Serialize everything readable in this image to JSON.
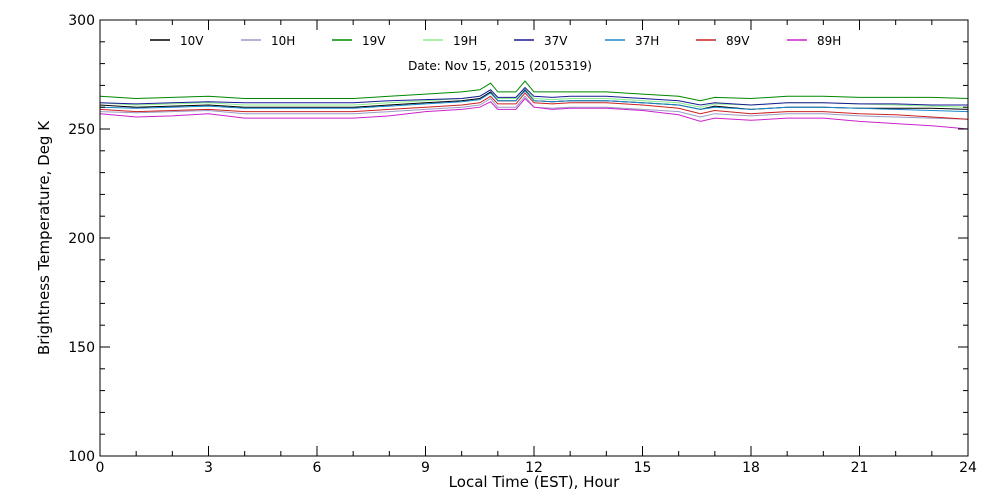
{
  "chart_data": {
    "type": "line",
    "xlabel": "Local Time (EST), Hour",
    "ylabel": "Brightness Temperature, Deg K",
    "annotation": "Date: Nov 15, 2015 (2015319)",
    "xlim": [
      0,
      24
    ],
    "ylim": [
      100,
      300
    ],
    "xticks": [
      "0",
      "3",
      "6",
      "9",
      "12",
      "15",
      "18",
      "21",
      "24"
    ],
    "yticks": [
      "100",
      "150",
      "200",
      "250",
      "300"
    ],
    "grid": false,
    "legend_position": "top",
    "x": [
      0,
      1,
      2,
      3,
      4,
      5,
      6,
      7,
      8,
      9,
      10,
      10.5,
      10.8,
      11,
      11.5,
      11.75,
      12,
      12.5,
      13,
      14,
      15,
      16,
      16.6,
      17,
      18,
      19,
      20,
      21,
      22,
      23,
      24
    ],
    "series": [
      {
        "name": "10V",
        "color": "#000000",
        "values": [
          261,
          260,
          260.5,
          261,
          260,
          260,
          260,
          260,
          261,
          262,
          263,
          264,
          267,
          263,
          263,
          268,
          263,
          262.5,
          263,
          263,
          262,
          261,
          259,
          260.5,
          259,
          260,
          260,
          259.5,
          259.5,
          259.5,
          259
        ]
      },
      {
        "name": "10H",
        "color": "#9a9ac8",
        "values": [
          258,
          257.5,
          258,
          258.5,
          257,
          257,
          257,
          257,
          258,
          259,
          260,
          261,
          264,
          260,
          260,
          265,
          260,
          259.5,
          260,
          260,
          259,
          258,
          255.5,
          257,
          256,
          257,
          257,
          256,
          255.5,
          255,
          254.5
        ]
      },
      {
        "name": "19V",
        "color": "#008800",
        "values": [
          265,
          264,
          264.5,
          265,
          264,
          264,
          264,
          264,
          265,
          266,
          267,
          268,
          271,
          267,
          267,
          272,
          267,
          267,
          267,
          267,
          266,
          265,
          263,
          264.5,
          264,
          265,
          265,
          264.5,
          264.5,
          264.5,
          264
        ]
      },
      {
        "name": "19H",
        "color": "#88ee88",
        "values": [
          262,
          261,
          261.5,
          262,
          261,
          261,
          261,
          261,
          262,
          263,
          264,
          265,
          268,
          264,
          264,
          269,
          264,
          263.5,
          264,
          264,
          263,
          262,
          260,
          261.5,
          261,
          262,
          262,
          261.5,
          261,
          260.5,
          260
        ]
      },
      {
        "name": "37V",
        "color": "#1a1a99",
        "values": [
          262,
          261.5,
          262,
          262.5,
          262,
          262,
          262,
          262,
          263,
          263.5,
          264,
          265,
          268,
          264.5,
          264.5,
          269,
          265,
          264.5,
          265,
          265,
          264,
          263,
          261,
          262,
          261,
          262,
          262,
          261.5,
          261.5,
          261,
          261
        ]
      },
      {
        "name": "37H",
        "color": "#1a88cc",
        "values": [
          260,
          259.5,
          260,
          260.5,
          259.5,
          259.5,
          259.5,
          259.5,
          260.5,
          261.5,
          262.5,
          263.5,
          266.5,
          263,
          263,
          267.5,
          263,
          262.5,
          263,
          263,
          262,
          261,
          259,
          260,
          259,
          260,
          260,
          259.5,
          259,
          258.5,
          258
        ]
      },
      {
        "name": "89V",
        "color": "#cc2222",
        "values": [
          259,
          258,
          258.5,
          259,
          258,
          258,
          258,
          258,
          259,
          260,
          261,
          262,
          265,
          261.5,
          261.5,
          266.5,
          262,
          261.5,
          262,
          262,
          261,
          259.5,
          257,
          258.5,
          257,
          258,
          258,
          257,
          256.5,
          255.5,
          254.5
        ]
      },
      {
        "name": "89H",
        "color": "#cc22cc",
        "values": [
          257,
          255.5,
          256,
          257,
          255,
          255,
          255,
          255,
          256,
          258,
          259,
          260,
          262.5,
          259,
          259,
          264,
          260,
          259,
          259.5,
          259.5,
          258.5,
          256.5,
          253.5,
          255,
          254,
          255,
          255,
          253.5,
          252.5,
          251.5,
          250
        ]
      }
    ]
  }
}
